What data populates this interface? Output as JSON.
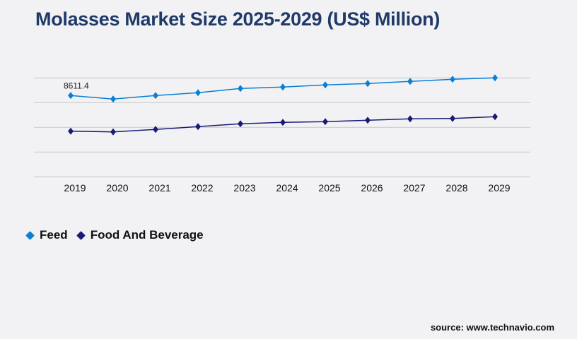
{
  "title": "Molasses Market Size 2025-2029 (US$ Million)",
  "source": "source: www.technavio.com",
  "chart_data": {
    "type": "line",
    "title": "Molasses Market Size 2025-2029 (US$ Million)",
    "categories": [
      "2019",
      "2020",
      "2021",
      "2022",
      "2023",
      "2024",
      "2025",
      "2026",
      "2027",
      "2028",
      "2029"
    ],
    "series": [
      {
        "name": "Feed",
        "color": "#0a7fd4",
        "values": [
          8611.4,
          8237,
          8611,
          8911,
          9360,
          9510,
          9734,
          9884,
          10109,
          10333,
          10483
        ]
      },
      {
        "name": "Food And Beverage",
        "color": "#1a1a78",
        "values": [
          4837,
          4762,
          5017,
          5316,
          5616,
          5766,
          5841,
          5990,
          6140,
          6185,
          6365
        ]
      }
    ],
    "data_labels": [
      {
        "series": "Feed",
        "category": "2019",
        "text": "8611.4"
      }
    ],
    "ylim": [
      0,
      10483
    ],
    "grid": true,
    "legend": "bottom-left"
  }
}
